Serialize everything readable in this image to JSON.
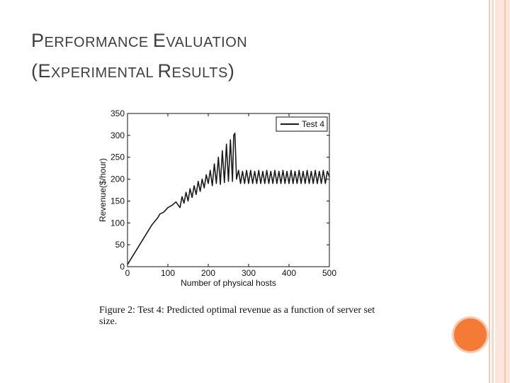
{
  "slide": {
    "title_line1": {
      "cap1": "P",
      "rest1": "ERFORMANCE ",
      "cap2": "E",
      "rest2": "VALUATION"
    },
    "title_line2": {
      "open": "(",
      "cap1": "E",
      "rest1": "XPERIMENTAL ",
      "cap2": "R",
      "rest2": "ESULTS",
      "close": ")"
    },
    "caption": "Figure 2: Test 4: Predicted optimal revenue as a function of server set size."
  },
  "chart_data": {
    "type": "line",
    "title": "",
    "xlabel": "Number of physical hosts",
    "ylabel": "Revenue($/hour)",
    "xlim": [
      0,
      500
    ],
    "ylim": [
      0,
      350
    ],
    "xticks": [
      0,
      100,
      200,
      300,
      400,
      500
    ],
    "yticks": [
      0,
      50,
      100,
      150,
      200,
      250,
      300,
      350
    ],
    "grid": false,
    "legend_position": "top-right",
    "series": [
      {
        "name": "Test 4",
        "color": "#1a1a1a",
        "x": [
          0,
          20,
          40,
          60,
          75,
          80,
          90,
          100,
          110,
          120,
          130,
          135,
          140,
          145,
          150,
          155,
          160,
          165,
          170,
          175,
          180,
          185,
          190,
          195,
          200,
          205,
          210,
          215,
          220,
          225,
          230,
          235,
          240,
          245,
          250,
          255,
          260,
          263,
          266,
          270,
          275,
          280,
          285,
          290,
          295,
          300,
          305,
          310,
          315,
          320,
          325,
          330,
          335,
          340,
          345,
          350,
          355,
          360,
          365,
          370,
          375,
          380,
          385,
          390,
          395,
          400,
          405,
          410,
          415,
          420,
          425,
          430,
          435,
          440,
          445,
          450,
          455,
          460,
          465,
          470,
          475,
          480,
          485,
          490,
          495,
          500
        ],
        "y": [
          5,
          35,
          65,
          95,
          112,
          120,
          125,
          135,
          140,
          148,
          135,
          160,
          145,
          170,
          150,
          178,
          158,
          185,
          165,
          195,
          172,
          200,
          180,
          210,
          190,
          220,
          185,
          235,
          190,
          250,
          188,
          265,
          192,
          280,
          195,
          290,
          195,
          300,
          305,
          200,
          220,
          190,
          218,
          190,
          220,
          190,
          220,
          190,
          218,
          190,
          220,
          190,
          218,
          190,
          220,
          190,
          218,
          190,
          220,
          190,
          218,
          190,
          220,
          190,
          218,
          190,
          220,
          190,
          218,
          190,
          220,
          190,
          218,
          190,
          220,
          190,
          218,
          190,
          220,
          190,
          218,
          190,
          220,
          190,
          218,
          205
        ]
      }
    ]
  }
}
